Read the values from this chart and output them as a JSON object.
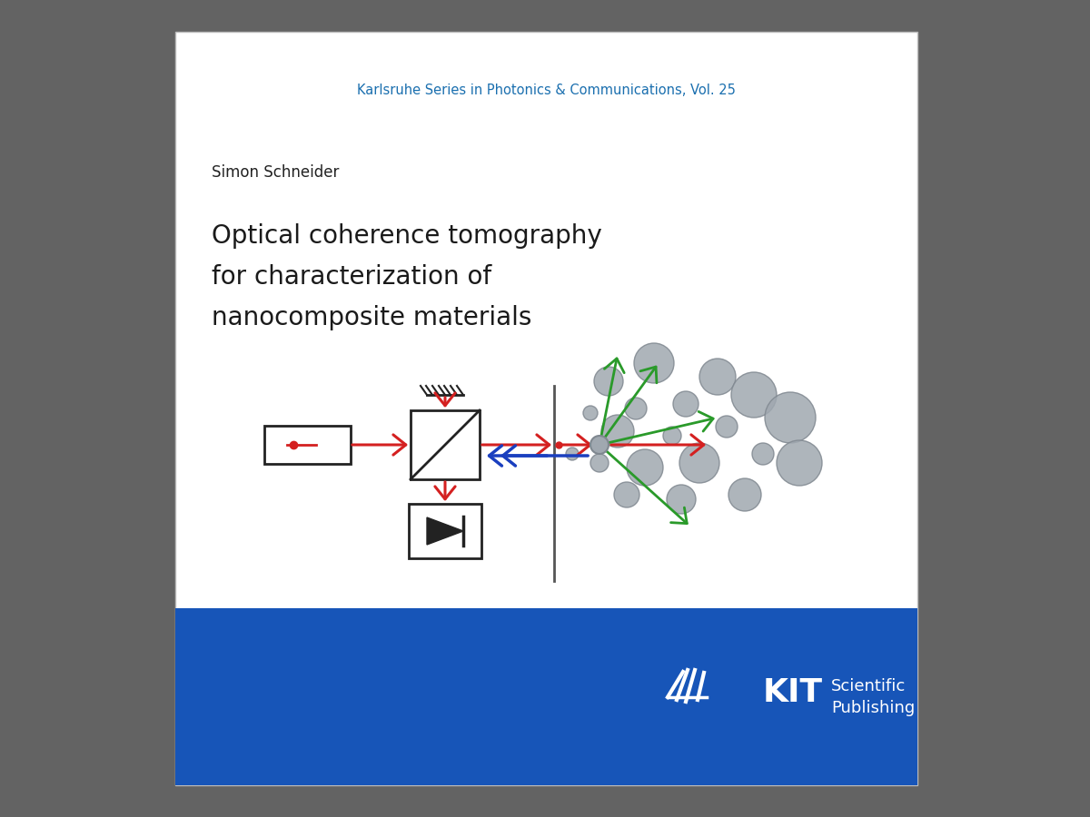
{
  "background_color": "#636363",
  "cover_bg": "#ffffff",
  "series_text": "Karlsruhe Series in Photonics & Communications, Vol. 25",
  "series_color": "#1a6faf",
  "series_fontsize": 10.5,
  "author_text": "Simon Schneider",
  "author_color": "#222222",
  "author_fontsize": 12,
  "title_line1": "Optical coherence tomography",
  "title_line2": "for characterization of",
  "title_line3": "nanocomposite materials",
  "title_color": "#1a1a1a",
  "title_fontsize": 20,
  "blue_band_color": "#1755b8",
  "kit_color": "#ffffff",
  "red_color": "#d42020",
  "blue_color": "#1a3fbf",
  "green_color": "#2a9a2a",
  "gray_particle": "#a0a8b0",
  "gray_edge": "#808890",
  "dark_color": "#222222",
  "separator_color": "#555555",
  "cover_shadow": "#444444"
}
